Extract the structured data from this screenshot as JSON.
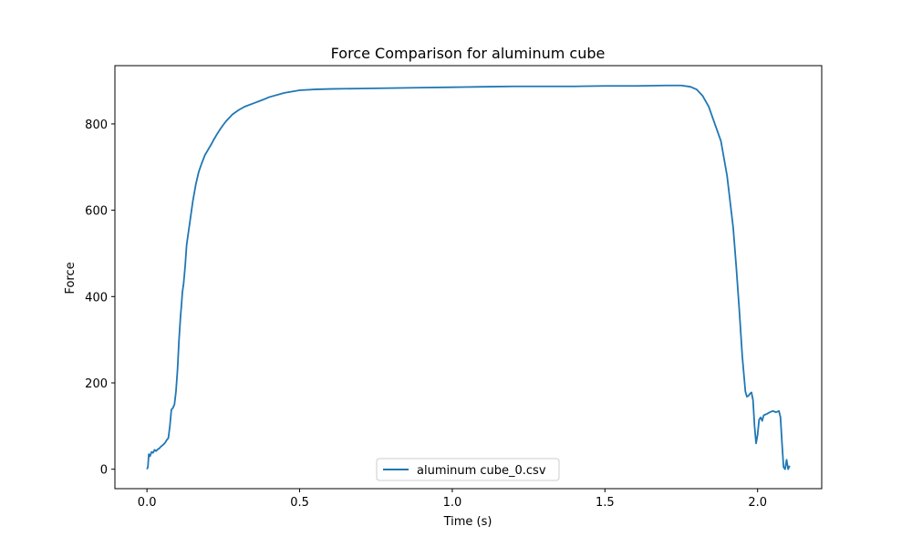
{
  "chart_data": {
    "type": "line",
    "title": "Force Comparison for aluminum cube",
    "xlabel": "Time (s)",
    "ylabel": "Force",
    "xlim": [
      -0.105,
      2.21
    ],
    "ylim": [
      -45,
      935
    ],
    "xticks": [
      0.0,
      0.5,
      1.0,
      1.5,
      2.0
    ],
    "xtick_labels": [
      "0.0",
      "0.5",
      "1.0",
      "1.5",
      "2.0"
    ],
    "yticks": [
      0,
      200,
      400,
      600,
      800
    ],
    "ytick_labels": [
      "0",
      "200",
      "400",
      "600",
      "800"
    ],
    "grid": false,
    "legend": "lower-center",
    "line_color": "#1f77b4",
    "series": [
      {
        "name": "aluminum cube_0.csv",
        "x": [
          0.0,
          0.003,
          0.006,
          0.01,
          0.015,
          0.02,
          0.025,
          0.03,
          0.035,
          0.04,
          0.045,
          0.05,
          0.055,
          0.06,
          0.065,
          0.07,
          0.075,
          0.08,
          0.085,
          0.09,
          0.095,
          0.1,
          0.105,
          0.11,
          0.113,
          0.116,
          0.12,
          0.125,
          0.13,
          0.14,
          0.15,
          0.16,
          0.17,
          0.18,
          0.19,
          0.2,
          0.21,
          0.22,
          0.23,
          0.24,
          0.25,
          0.26,
          0.28,
          0.3,
          0.32,
          0.35,
          0.38,
          0.4,
          0.45,
          0.5,
          0.55,
          0.6,
          0.7,
          0.8,
          0.9,
          1.0,
          1.1,
          1.2,
          1.3,
          1.4,
          1.5,
          1.6,
          1.7,
          1.75,
          1.78,
          1.8,
          1.82,
          1.84,
          1.86,
          1.88,
          1.9,
          1.92,
          1.93,
          1.94,
          1.95,
          1.96,
          1.965,
          1.97,
          1.975,
          1.98,
          1.985,
          1.99,
          1.995,
          2.0,
          2.005,
          2.01,
          2.015,
          2.02,
          2.03,
          2.04,
          2.05,
          2.06,
          2.07,
          2.075,
          2.08,
          2.085,
          2.09,
          2.095,
          2.1,
          2.105
        ],
        "y": [
          0,
          5,
          35,
          30,
          40,
          38,
          45,
          42,
          46,
          48,
          52,
          55,
          58,
          62,
          68,
          72,
          100,
          138,
          142,
          150,
          180,
          230,
          300,
          355,
          380,
          410,
          430,
          470,
          520,
          570,
          620,
          660,
          690,
          710,
          728,
          740,
          752,
          765,
          777,
          788,
          798,
          807,
          822,
          832,
          840,
          848,
          856,
          862,
          872,
          878,
          880,
          881,
          882,
          883,
          884,
          885,
          886,
          887,
          887,
          887,
          888,
          888,
          889,
          889,
          886,
          880,
          865,
          840,
          800,
          760,
          680,
          560,
          470,
          370,
          260,
          180,
          168,
          170,
          175,
          178,
          160,
          100,
          60,
          80,
          115,
          120,
          112,
          125,
          128,
          132,
          135,
          132,
          135,
          120,
          60,
          5,
          0,
          22,
          0,
          8
        ]
      }
    ]
  }
}
